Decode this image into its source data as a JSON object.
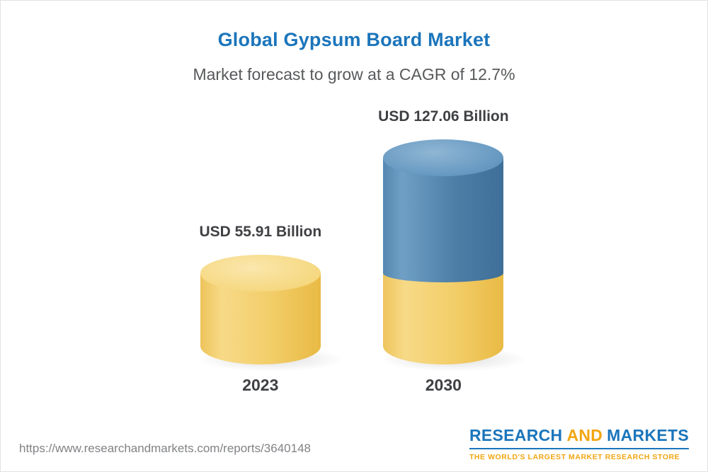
{
  "header": {
    "title": "Global Gypsum Board Market",
    "subtitle": "Market forecast to grow at a CAGR of 12.7%"
  },
  "chart_data": {
    "type": "bar",
    "title": "Global Gypsum Board Market",
    "subtitle": "Market forecast to grow at a CAGR of 12.7%",
    "categories": [
      "2023",
      "2030"
    ],
    "values": [
      55.91,
      127.06
    ],
    "unit": "USD Billion",
    "value_labels": [
      "USD 55.91 Billion",
      "USD 127.06 Billion"
    ],
    "cagr_percent": 12.7,
    "bar_colors": [
      "#f2cc66",
      "#4d80a8"
    ],
    "stacked_note": "2030 bar shows 2023 base in yellow with blue growth segment on top",
    "xlabel": "",
    "ylabel": "",
    "grid": false,
    "legend": false
  },
  "footer": {
    "url": "https://www.researchandmarkets.com/reports/3640148",
    "logo": {
      "part1": "RESEARCH",
      "part2": "AND",
      "part3": "MARKETS",
      "tagline": "THE WORLD'S LARGEST MARKET RESEARCH STORE"
    }
  },
  "colors": {
    "title_blue": "#1b75bb",
    "subtitle_gray": "#58595b",
    "yellow_body": "#f2cc66",
    "yellow_cap": "#f6d987",
    "blue_body": "#4d80a8",
    "blue_cap": "#74a3c8",
    "logo_blue": "#1b75bb",
    "logo_gold": "#f2a612",
    "text_dark": "#3f4043",
    "url_gray": "#808285"
  }
}
